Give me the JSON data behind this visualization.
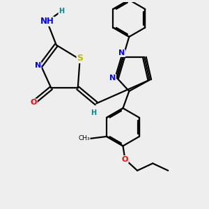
{
  "bg_color": "#eeeeee",
  "bond_color": "#000000",
  "bond_width": 1.6,
  "atom_colors": {
    "N": "#0000ff",
    "O": "#ff0000",
    "S": "#bbbb00",
    "H": "#008888",
    "C": "#000000"
  },
  "font_size": 8.0,
  "fig_width": 3.0,
  "fig_height": 3.0,
  "dpi": 100,
  "xlim": [
    0,
    10
  ],
  "ylim": [
    0,
    10
  ]
}
